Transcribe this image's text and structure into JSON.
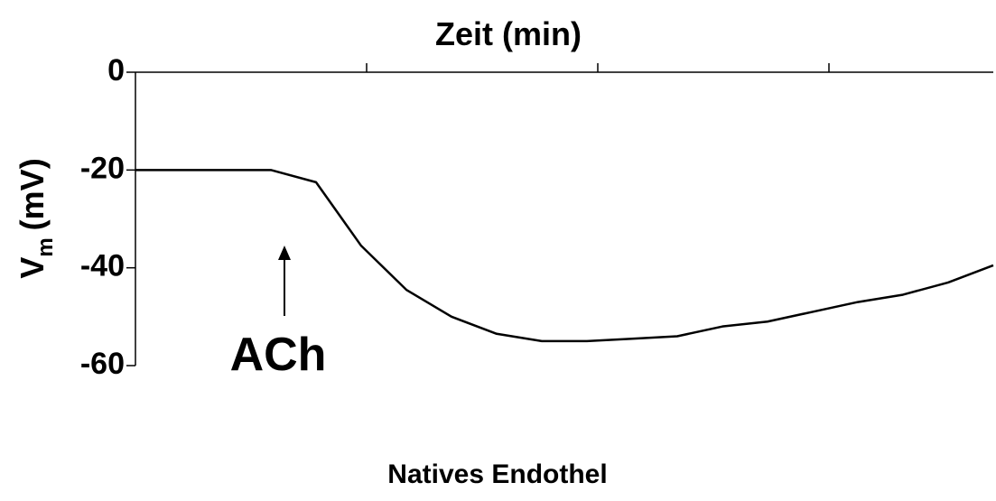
{
  "chart_data": {
    "type": "line",
    "x_label": "Zeit (min)",
    "y_label": "V",
    "y_label_subscript": "m",
    "y_label_unit": "(mV)",
    "caption": "Natives Endothel",
    "annotation": "ACh",
    "values": [
      -20,
      -20,
      -20,
      -20,
      -22.5,
      -35.5,
      -44.5,
      -50,
      -53.5,
      -55,
      -55,
      -54.5,
      -54,
      -52,
      -51,
      -49,
      -47,
      -45.5,
      -43,
      -39.5
    ],
    "color": "#000000",
    "ylim": [
      -60,
      0
    ],
    "yticks": [
      0,
      -20,
      -40,
      -60
    ],
    "grid": false
  }
}
